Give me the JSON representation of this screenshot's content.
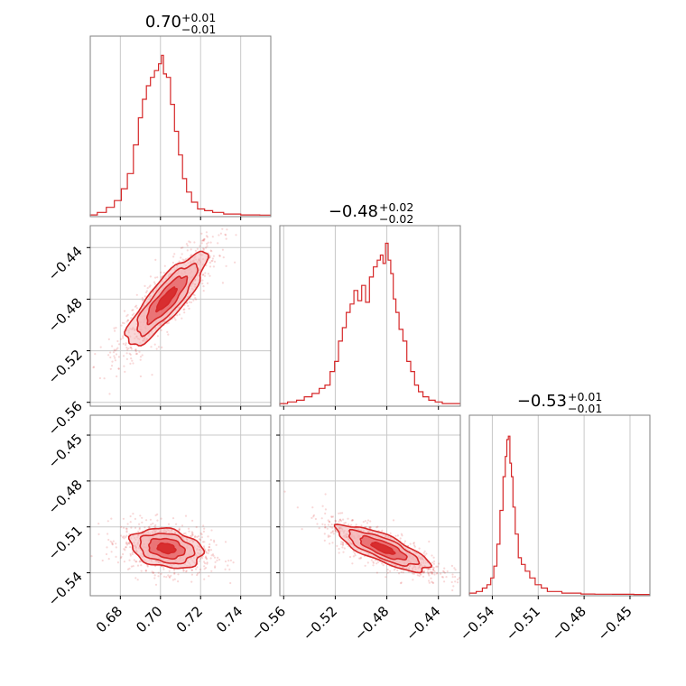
{
  "figure": {
    "title_hist1": "0.70",
    "title_hist1_plus": "+0.01",
    "title_hist1_minus": "−0.01",
    "title_hist2": "−0.48",
    "title_hist2_plus": "+0.02",
    "title_hist2_minus": "−0.02",
    "title_hist3": "−0.53",
    "title_hist3_plus": "+0.01",
    "title_hist3_minus": "−0.01"
  },
  "colors": {
    "primary": "#d62728",
    "fill_outer": "#f4b7b8",
    "fill_inner": "#e8676a",
    "frame": "#808080",
    "grid": "#c8c8c8"
  },
  "chart_data": {
    "type": "corner",
    "parameters": [
      {
        "range": [
          0.665,
          0.755
        ],
        "ticks": [
          0.68,
          0.7,
          0.72,
          0.74
        ],
        "tick_labels": [
          "0.68",
          "0.70",
          "0.72",
          "0.74"
        ],
        "median": 0.7,
        "plus": 0.01,
        "minus": 0.01
      },
      {
        "range": [
          -0.563,
          -0.423
        ],
        "ticks": [
          -0.56,
          -0.52,
          -0.48,
          -0.44
        ],
        "tick_labels": [
          "−0.56",
          "−0.52",
          "−0.48",
          "−0.44"
        ],
        "median": -0.48,
        "plus": 0.02,
        "minus": 0.02
      },
      {
        "range": [
          -0.555,
          -0.437
        ],
        "ticks": [
          -0.54,
          -0.51,
          -0.48,
          -0.45
        ],
        "tick_labels": [
          "−0.54",
          "−0.51",
          "−0.48",
          "−0.45"
        ],
        "median": -0.53,
        "plus": 0.01,
        "minus": 0.01
      }
    ],
    "hist1": {
      "x": [
        0.666,
        0.671,
        0.675,
        0.679,
        0.682,
        0.685,
        0.688,
        0.69,
        0.692,
        0.694,
        0.696,
        0.698,
        0.7,
        0.701,
        0.702,
        0.704,
        0.706,
        0.708,
        0.71,
        0.712,
        0.714,
        0.717,
        0.72,
        0.724,
        0.728,
        0.735,
        0.745,
        0.754
      ],
      "y": [
        0.005,
        0.02,
        0.05,
        0.09,
        0.16,
        0.25,
        0.42,
        0.58,
        0.69,
        0.77,
        0.82,
        0.86,
        0.9,
        0.95,
        0.84,
        0.82,
        0.66,
        0.5,
        0.36,
        0.22,
        0.14,
        0.08,
        0.04,
        0.03,
        0.02,
        0.01,
        0.005,
        0.004
      ]
    },
    "hist2": {
      "x": [
        -0.561,
        -0.553,
        -0.547,
        -0.541,
        -0.535,
        -0.53,
        -0.526,
        -0.522,
        -0.519,
        -0.516,
        -0.513,
        -0.51,
        -0.507,
        -0.504,
        -0.501,
        -0.498,
        -0.495,
        -0.492,
        -0.489,
        -0.486,
        -0.484,
        -0.482,
        -0.48,
        -0.478,
        -0.476,
        -0.474,
        -0.472,
        -0.469,
        -0.466,
        -0.463,
        -0.46,
        -0.457,
        -0.454,
        -0.45,
        -0.445,
        -0.44,
        -0.434,
        -0.427
      ],
      "y": [
        0.01,
        0.02,
        0.03,
        0.05,
        0.07,
        0.1,
        0.12,
        0.2,
        0.26,
        0.38,
        0.46,
        0.55,
        0.6,
        0.68,
        0.62,
        0.71,
        0.61,
        0.76,
        0.82,
        0.86,
        0.89,
        0.84,
        0.96,
        0.86,
        0.78,
        0.63,
        0.55,
        0.45,
        0.38,
        0.26,
        0.2,
        0.12,
        0.08,
        0.05,
        0.03,
        0.02,
        0.01,
        0.01
      ]
    },
    "hist3": {
      "x": [
        -0.553,
        -0.548,
        -0.545,
        -0.542,
        -0.54,
        -0.538,
        -0.536,
        -0.534,
        -0.532,
        -0.531,
        -0.53,
        -0.529,
        -0.528,
        -0.527,
        -0.526,
        -0.524,
        -0.522,
        -0.52,
        -0.517,
        -0.514,
        -0.51,
        -0.506,
        -0.502,
        -0.497,
        -0.492,
        -0.486,
        -0.478,
        -0.468,
        -0.455,
        -0.44
      ],
      "y": [
        0.01,
        0.02,
        0.04,
        0.06,
        0.1,
        0.17,
        0.3,
        0.5,
        0.7,
        0.82,
        0.92,
        0.94,
        0.78,
        0.7,
        0.52,
        0.36,
        0.22,
        0.18,
        0.14,
        0.1,
        0.06,
        0.04,
        0.02,
        0.02,
        0.01,
        0.01,
        0.005,
        0.004,
        0.003,
        0.002
      ]
    },
    "pairs": [
      {
        "xi": 0,
        "yi": 1,
        "center": [
          0.703,
          -0.48
        ],
        "sd": [
          0.01,
          0.018
        ],
        "rho": 0.85
      },
      {
        "xi": 0,
        "yi": 2,
        "center": [
          0.703,
          -0.524
        ],
        "sd": [
          0.009,
          0.0065
        ],
        "rho": -0.25
      },
      {
        "xi": 1,
        "yi": 2,
        "center": [
          -0.483,
          -0.524
        ],
        "sd": [
          0.018,
          0.0075
        ],
        "rho": -0.78
      }
    ],
    "contour_levels_sigma": [
      0.5,
      1.0,
      1.5,
      2.0
    ]
  }
}
